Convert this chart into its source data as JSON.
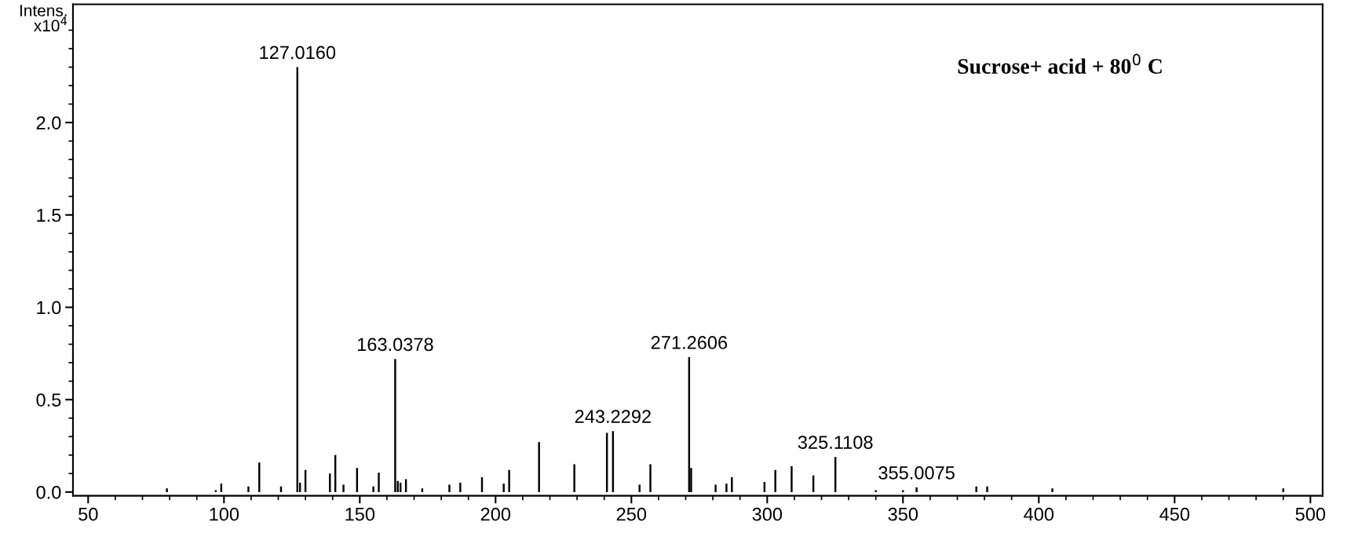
{
  "chart_data": {
    "type": "bar",
    "ylabel": "Intens.\nx10$^{4}$",
    "color": "#000000",
    "x": [
      79,
      97,
      99,
      109,
      113,
      121,
      127.016,
      128,
      130,
      139,
      141,
      144,
      149,
      155,
      157,
      163.0378,
      164,
      165,
      167,
      173,
      183,
      187,
      195,
      203,
      205,
      216,
      229,
      241,
      243.2292,
      253,
      257,
      271.2606,
      272,
      281,
      285,
      287,
      299,
      303,
      309,
      317,
      325.1108,
      340,
      350,
      355.0075,
      377,
      381,
      405,
      490
    ],
    "values": [
      0.02,
      0.01,
      0.045,
      0.03,
      0.16,
      0.03,
      2.3,
      0.05,
      0.12,
      0.1,
      0.2,
      0.04,
      0.13,
      0.03,
      0.105,
      0.72,
      0.06,
      0.05,
      0.07,
      0.02,
      0.04,
      0.05,
      0.08,
      0.045,
      0.12,
      0.27,
      0.15,
      0.32,
      0.33,
      0.04,
      0.15,
      0.73,
      0.13,
      0.04,
      0.045,
      0.08,
      0.055,
      0.12,
      0.14,
      0.09,
      0.19,
      0.01,
      0.01,
      0.025,
      0.03,
      0.03,
      0.02,
      0.02
    ],
    "xlim": [
      44.4,
      504.5
    ],
    "ylim": [
      -0.02,
      2.64
    ],
    "xticks": [
      50,
      100,
      150,
      200,
      250,
      300,
      350,
      400,
      450,
      500,
      {
        "value": 60,
        "label": null
      },
      {
        "value": 70,
        "label": null
      },
      {
        "value": 80,
        "label": null
      },
      {
        "value": 90,
        "label": null
      },
      {
        "value": 110,
        "label": null
      },
      {
        "value": 120,
        "label": null
      },
      {
        "value": 130,
        "label": null
      },
      {
        "value": 140,
        "label": null
      },
      {
        "value": 160,
        "label": null
      },
      {
        "value": 170,
        "label": null
      },
      {
        "value": 180,
        "label": null
      },
      {
        "value": 190,
        "label": null
      },
      {
        "value": 210,
        "label": null
      },
      {
        "value": 220,
        "label": null
      },
      {
        "value": 230,
        "label": null
      },
      {
        "value": 240,
        "label": null
      },
      {
        "value": 260,
        "label": null
      },
      {
        "value": 270,
        "label": null
      },
      {
        "value": 280,
        "label": null
      },
      {
        "value": 290,
        "label": null
      },
      {
        "value": 310,
        "label": null
      },
      {
        "value": 320,
        "label": null
      },
      {
        "value": 330,
        "label": null
      },
      {
        "value": 340,
        "label": null
      },
      {
        "value": 360,
        "label": null
      },
      {
        "value": 370,
        "label": null
      },
      {
        "value": 380,
        "label": null
      },
      {
        "value": 390,
        "label": null
      },
      {
        "value": 410,
        "label": null
      },
      {
        "value": 420,
        "label": null
      },
      {
        "value": 430,
        "label": null
      },
      {
        "value": 440,
        "label": null
      },
      {
        "value": 460,
        "label": null
      },
      {
        "value": 470,
        "label": null
      },
      {
        "value": 480,
        "label": null
      },
      {
        "value": 490,
        "label": null
      }
    ],
    "yticks": [
      {
        "value": 0,
        "label": "0.0"
      },
      {
        "value": 0.5,
        "label": "0.5"
      },
      {
        "value": 1.0,
        "label": "1.0"
      },
      {
        "value": 1.5,
        "label": "1.5"
      },
      {
        "value": 2.0,
        "label": "2.0"
      },
      {
        "value": 0.1,
        "label": null
      },
      {
        "value": 0.2,
        "label": null
      },
      {
        "value": 0.3,
        "label": null
      },
      {
        "value": 0.4,
        "label": null
      },
      {
        "value": 0.6,
        "label": null
      },
      {
        "value": 0.7,
        "label": null
      },
      {
        "value": 0.8,
        "label": null
      },
      {
        "value": 0.9,
        "label": null
      },
      {
        "value": 1.1,
        "label": null
      },
      {
        "value": 1.2,
        "label": null
      },
      {
        "value": 1.3,
        "label": null
      },
      {
        "value": 1.4,
        "label": null
      },
      {
        "value": 1.6,
        "label": null
      },
      {
        "value": 1.7,
        "label": null
      },
      {
        "value": 1.8,
        "label": null
      },
      {
        "value": 1.9,
        "label": null
      },
      {
        "value": 2.1,
        "label": null
      },
      {
        "value": 2.2,
        "label": null
      },
      {
        "value": 2.3,
        "label": null
      },
      {
        "value": 2.4,
        "label": null
      },
      {
        "value": 2.5,
        "label": null
      }
    ],
    "annotations": [
      {
        "text": "127.0160",
        "x": 127.016,
        "y": 2.3
      },
      {
        "text": "163.0378",
        "x": 163.0378,
        "y": 0.72
      },
      {
        "text": "243.2292",
        "x": 243.2292,
        "y": 0.33
      },
      {
        "text": "271.2606",
        "x": 271.2606,
        "y": 0.73
      },
      {
        "text": "325.1108",
        "x": 325.1108,
        "y": 0.19
      },
      {
        "text": "355.0075",
        "x": 355.0075,
        "y": 0.025
      },
      "Sucrose+ acid + 80$^{0}$ C"
    ],
    "grid": false
  }
}
